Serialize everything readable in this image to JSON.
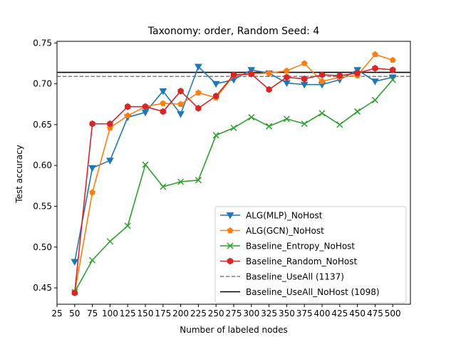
{
  "chart_data": {
    "type": "line",
    "title": "Taxonomy: order, Random Seed: 4",
    "xlabel": "Number of labeled nodes",
    "ylabel": "Test accuracy",
    "xlim": [
      25,
      525
    ],
    "ylim": [
      0.43,
      0.752
    ],
    "x_ticks": [
      25,
      50,
      75,
      100,
      125,
      150,
      175,
      200,
      225,
      250,
      275,
      300,
      325,
      350,
      375,
      400,
      425,
      450,
      475,
      500
    ],
    "y_ticks": [
      0.45,
      0.5,
      0.55,
      0.6,
      0.65,
      0.7,
      0.75
    ],
    "y_tick_labels": [
      "0.45",
      "0.50",
      "0.55",
      "0.60",
      "0.65",
      "0.70",
      "0.75"
    ],
    "x": [
      50,
      75,
      100,
      125,
      150,
      175,
      200,
      225,
      250,
      275,
      300,
      325,
      350,
      375,
      400,
      425,
      450,
      475,
      500
    ],
    "grid": false,
    "legend_position": "lower-right",
    "series": [
      {
        "name": "ALG(MLP)_NoHost",
        "color": "#1f77b4",
        "marker": "triangle-down",
        "values": [
          0.482,
          0.597,
          0.606,
          0.659,
          0.665,
          0.691,
          0.663,
          0.721,
          0.7,
          0.705,
          0.717,
          0.713,
          0.701,
          0.699,
          0.699,
          0.705,
          0.717,
          0.703,
          0.708
        ]
      },
      {
        "name": "ALG(GCN)_NoHost",
        "color": "#ff7f0e",
        "marker": "pentagon",
        "values": [
          0.444,
          0.567,
          0.646,
          0.661,
          0.672,
          0.676,
          0.675,
          0.689,
          0.683,
          0.71,
          0.712,
          0.713,
          0.716,
          0.725,
          0.703,
          0.708,
          0.71,
          0.736,
          0.729
        ]
      },
      {
        "name": "Baseline_Entropy_NoHost",
        "color": "#2ca02c",
        "marker": "x",
        "values": [
          0.445,
          0.484,
          0.507,
          0.526,
          0.601,
          0.574,
          0.58,
          0.582,
          0.637,
          0.646,
          0.659,
          0.648,
          0.657,
          0.651,
          0.664,
          0.65,
          0.666,
          0.68,
          0.705
        ]
      },
      {
        "name": "Baseline_Random_NoHost",
        "color": "#d62728",
        "marker": "hexagon",
        "values": [
          0.444,
          0.651,
          0.651,
          0.672,
          0.672,
          0.666,
          0.691,
          0.67,
          0.685,
          0.711,
          0.712,
          0.693,
          0.708,
          0.706,
          0.711,
          0.71,
          0.713,
          0.719,
          0.717
        ]
      }
    ],
    "reference_lines": [
      {
        "name": "Baseline_UseAll (1137)",
        "color": "#7f7f7f",
        "style": "dashed",
        "value": 0.709
      },
      {
        "name": "Baseline_UseAll_NoHost (1098)",
        "color": "#000000",
        "style": "solid",
        "value": 0.714
      }
    ]
  }
}
